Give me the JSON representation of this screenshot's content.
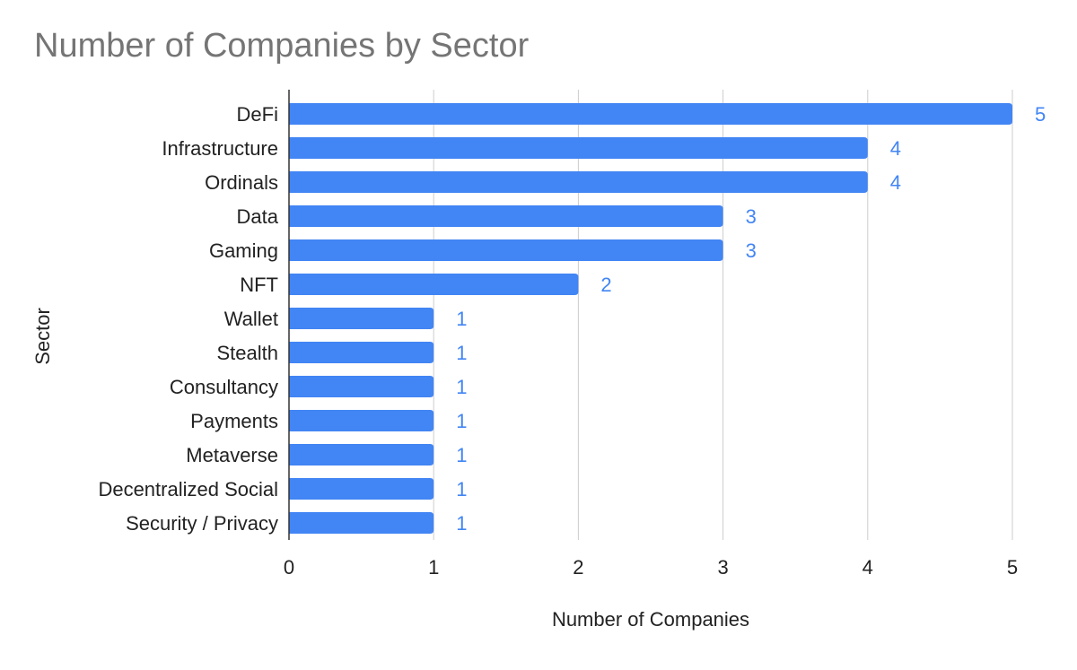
{
  "chart_data": {
    "type": "bar",
    "orientation": "horizontal",
    "title": "Number of Companies by Sector",
    "xlabel": "Number of Companies",
    "ylabel": "Sector",
    "categories": [
      "DeFi",
      "Infrastructure",
      "Ordinals",
      "Data",
      "Gaming",
      "NFT",
      "Wallet",
      "Stealth",
      "Consultancy",
      "Payments",
      "Metaverse",
      "Decentralized Social",
      "Security / Privacy"
    ],
    "values": [
      5,
      4,
      4,
      3,
      3,
      2,
      1,
      1,
      1,
      1,
      1,
      1,
      1
    ],
    "xlim": [
      0,
      5
    ],
    "xticks": [
      "0",
      "1",
      "2",
      "3",
      "4",
      "5"
    ],
    "grid": true,
    "data_labels": true,
    "colors": {
      "bar": "#4285f4",
      "data_label": "#4285f4",
      "title": "#757575",
      "grid": "#cccccc",
      "axis": "#333333",
      "text": "#222222"
    }
  }
}
